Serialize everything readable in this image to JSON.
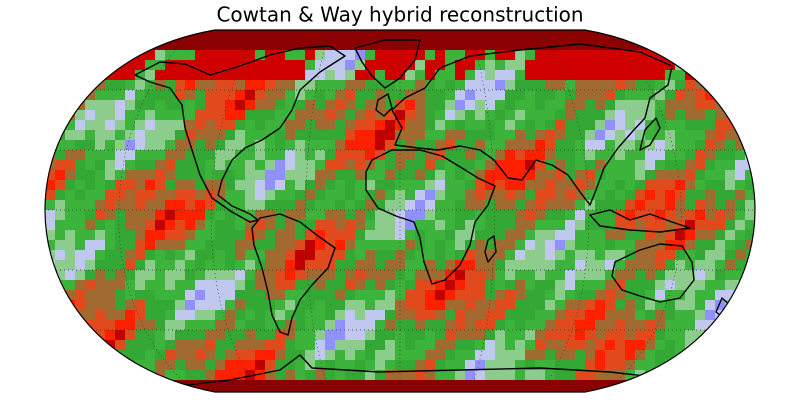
{
  "title": "Cowtan & Way hybrid reconstruction"
}
